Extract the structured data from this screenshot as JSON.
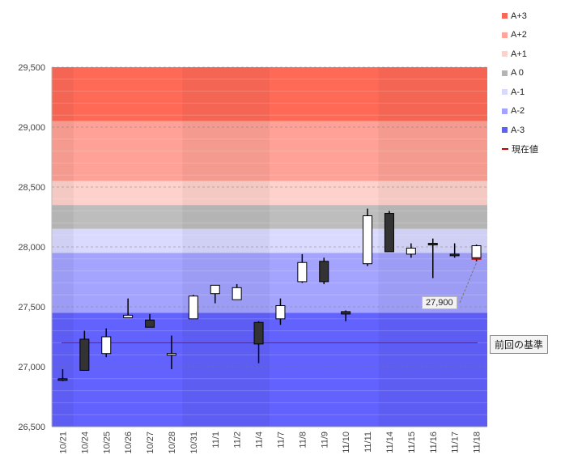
{
  "chart_data": {
    "type": "candlestick",
    "categories": [
      "10/21",
      "10/24",
      "10/25",
      "10/26",
      "10/27",
      "10/28",
      "10/31",
      "11/1",
      "11/2",
      "11/4",
      "11/7",
      "11/8",
      "11/9",
      "11/10",
      "11/11",
      "11/14",
      "11/15",
      "11/16",
      "11/17",
      "11/18"
    ],
    "candles": [
      {
        "open": 26900,
        "close": 26890,
        "high": 26980,
        "low": 26880
      },
      {
        "open": 27230,
        "close": 26970,
        "high": 27300,
        "low": 26970
      },
      {
        "open": 27110,
        "close": 27250,
        "high": 27320,
        "low": 27080
      },
      {
        "open": 27410,
        "close": 27430,
        "high": 27570,
        "low": 27410
      },
      {
        "open": 27390,
        "close": 27330,
        "high": 27440,
        "low": 27330
      },
      {
        "open": 27100,
        "close": 27110,
        "high": 27260,
        "low": 26980
      },
      {
        "open": 27400,
        "close": 27590,
        "high": 27600,
        "low": 27400
      },
      {
        "open": 27610,
        "close": 27680,
        "high": 27680,
        "low": 27530
      },
      {
        "open": 27560,
        "close": 27660,
        "high": 27690,
        "low": 27560
      },
      {
        "open": 27370,
        "close": 27190,
        "high": 27380,
        "low": 27030
      },
      {
        "open": 27400,
        "close": 27510,
        "high": 27570,
        "low": 27350
      },
      {
        "open": 27710,
        "close": 27870,
        "high": 27940,
        "low": 27700
      },
      {
        "open": 27880,
        "close": 27710,
        "high": 27910,
        "low": 27690
      },
      {
        "open": 27460,
        "close": 27440,
        "high": 27470,
        "low": 27380
      },
      {
        "open": 27860,
        "close": 28260,
        "high": 28320,
        "low": 27840
      },
      {
        "open": 28280,
        "close": 27960,
        "high": 28300,
        "low": 27960
      },
      {
        "open": 27940,
        "close": 27990,
        "high": 28030,
        "low": 27910
      },
      {
        "open": 28030,
        "close": 28020,
        "high": 28070,
        "low": 27740
      },
      {
        "open": 27940,
        "close": 27930,
        "high": 28030,
        "low": 27910
      },
      {
        "open": 27910,
        "close": 28010,
        "high": 28020,
        "low": 27880
      }
    ],
    "y_axis": {
      "min": 26500,
      "max": 29500,
      "ticks": [
        26500,
        27000,
        27500,
        28000,
        28500,
        29000,
        29500
      ],
      "tick_labels": [
        "26,500",
        "27,000",
        "27,500",
        "28,000",
        "28,500",
        "29,000",
        "29,500"
      ]
    },
    "bands": [
      {
        "name": "A+3",
        "from": 29050,
        "to": 29500,
        "color": "#ff6a57"
      },
      {
        "name": "A+2",
        "from": 28550,
        "to": 29050,
        "color": "#ffa196"
      },
      {
        "name": "A+1",
        "from": 28350,
        "to": 28550,
        "color": "#ffd1cc"
      },
      {
        "name": "A 0",
        "from": 28150,
        "to": 28350,
        "color": "#bdbdbd"
      },
      {
        "name": "A-1",
        "from": 27950,
        "to": 28150,
        "color": "#dadaff"
      },
      {
        "name": "A-2",
        "from": 27450,
        "to": 27950,
        "color": "#a4a4ff"
      },
      {
        "name": "A-3",
        "from": 26500,
        "to": 27450,
        "color": "#6262ff"
      }
    ],
    "reference_line": {
      "label": "前回の基準",
      "value": 27200,
      "color": "#cc0000"
    },
    "current_value": {
      "label": "27,900",
      "value": 27900,
      "legend_label": "現在値",
      "color": "#cc0000"
    }
  },
  "legend": {
    "items": [
      {
        "label": "A+3",
        "color": "#f5685a"
      },
      {
        "label": "A+2",
        "color": "#ffa59b"
      },
      {
        "label": "A+1",
        "color": "#ffd1cc"
      },
      {
        "label": "A 0",
        "color": "#b4b4b4"
      },
      {
        "label": "A-1",
        "color": "#d9d9ff"
      },
      {
        "label": "A-2",
        "color": "#a3a3ff"
      },
      {
        "label": "A-3",
        "color": "#5f5ff0"
      }
    ],
    "current_label": "現在値",
    "current_color": "#cc0000"
  },
  "colors": {
    "up_fill": "#ffffff",
    "down_fill": "#333333",
    "wick": "#000000",
    "axis_text": "#444444",
    "grid": "#777777"
  }
}
